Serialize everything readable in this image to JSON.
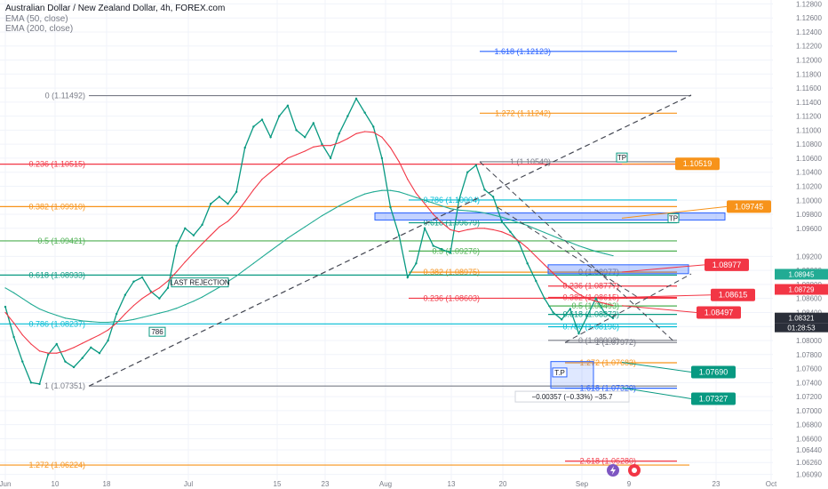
{
  "header": {
    "title": "Australian Dollar / New Zealand Dollar, 4h, FOREX.com",
    "indicator_1": "EMA (50, close)",
    "indicator_2": "EMA (200, close)"
  },
  "chart_data": {
    "type": "line",
    "title": "Australian Dollar / New Zealand Dollar, 4h, FOREX.com",
    "ylim": [
      1.0606,
      1.1278
    ],
    "x_ticks": [
      "Jun",
      "10",
      "18",
      "Jul",
      "15",
      "23",
      "Aug",
      "13",
      "20",
      "Sep",
      "9",
      "23",
      "Oct"
    ],
    "y_ticks": [
      "1.12800",
      "1.12600",
      "1.12400",
      "1.12200",
      "1.12000",
      "1.11800",
      "1.11600",
      "1.11400",
      "1.11200",
      "1.11000",
      "1.10800",
      "1.10600",
      "1.10400",
      "1.10200",
      "1.10000",
      "1.09800",
      "1.09600",
      "1.09200",
      "1.09000",
      "1.08800",
      "1.08600",
      "1.08400",
      "1.08200",
      "1.08000",
      "1.07800",
      "1.07600",
      "1.07400",
      "1.07200",
      "1.07000",
      "1.06800",
      "1.06600",
      "1.06440",
      "1.06260",
      "1.06090"
    ],
    "series": [
      {
        "name": "Australian Dollar / New Zealand Dollar",
        "color": "#089981",
        "values": [
          1.0848,
          1.0805,
          1.077,
          1.074,
          1.0738,
          1.078,
          1.0795,
          1.077,
          1.0762,
          1.0775,
          1.079,
          1.0782,
          1.08,
          1.0838,
          1.0865,
          1.0884,
          1.089,
          1.087,
          1.086,
          1.0875,
          1.0935,
          1.096,
          1.095,
          1.0965,
          1.0995,
          1.1005,
          1.0995,
          1.1012,
          1.1075,
          1.1105,
          1.1115,
          1.109,
          1.112,
          1.1135,
          1.11,
          1.109,
          1.111,
          1.108,
          1.106,
          1.1095,
          1.112,
          1.1145,
          1.1125,
          1.1105,
          1.106,
          1.099,
          1.095,
          1.089,
          1.091,
          1.096,
          1.0935,
          1.093,
          1.0925,
          1.1,
          1.104,
          1.105,
          1.1015,
          1.1005,
          1.097,
          1.0955,
          1.094,
          1.091,
          1.0885,
          1.086,
          1.084,
          1.083,
          1.0845,
          1.081,
          1.0835,
          1.086,
          1.084,
          1.0832
        ]
      },
      {
        "name": "EMA (50, close)",
        "color": "#f23645",
        "values": [
          1.084,
          1.0825,
          1.0808,
          1.0795,
          1.0785,
          1.0782,
          1.0782,
          1.0785,
          1.079,
          1.0796,
          1.0802,
          1.0808,
          1.0815,
          1.0825,
          1.0838,
          1.085,
          1.086,
          1.0868,
          1.0875,
          1.0885,
          1.0898,
          1.0912,
          1.0925,
          1.0938,
          1.095,
          1.0962,
          1.097,
          1.0982,
          1.0998,
          1.1015,
          1.103,
          1.104,
          1.105,
          1.106,
          1.1065,
          1.107,
          1.1076,
          1.1078,
          1.1078,
          1.1082,
          1.1088,
          1.1095,
          1.1098,
          1.1097,
          1.109,
          1.1075,
          1.1055,
          1.103,
          1.101,
          1.0995,
          1.098,
          1.0968,
          1.0958,
          1.0955,
          1.0958,
          1.096,
          1.096,
          1.0958,
          1.0955,
          1.095,
          1.0942,
          1.0932,
          1.092,
          1.0908,
          1.0896,
          1.0884,
          1.0875,
          1.0866,
          1.086,
          1.0856,
          1.0853,
          1.085
        ]
      },
      {
        "name": "EMA (200, close)",
        "color": "#22ab94",
        "values": [
          1.0875,
          1.0868,
          1.086,
          1.0852,
          1.0845,
          1.084,
          1.0836,
          1.0832,
          1.083,
          1.0828,
          1.0827,
          1.0826,
          1.0826,
          1.0827,
          1.0828,
          1.083,
          1.0833,
          1.0836,
          1.0839,
          1.0842,
          1.0846,
          1.0851,
          1.0856,
          1.0862,
          1.0869,
          1.0876,
          1.0884,
          1.0892,
          1.0901,
          1.091,
          1.0919,
          1.0928,
          1.0937,
          1.0946,
          1.0954,
          1.0962,
          1.097,
          1.0978,
          1.0985,
          1.0992,
          1.0998,
          1.1004,
          1.1009,
          1.1012,
          1.1014,
          1.1014,
          1.1012,
          1.1008,
          1.1004,
          1.1,
          1.0996,
          1.0992,
          1.0988,
          1.0986,
          1.0985,
          1.0984,
          1.0982,
          1.0979,
          1.0976,
          1.0972,
          1.0968,
          1.0964,
          1.0959,
          1.0954,
          1.0949,
          1.0944,
          1.094,
          1.0935,
          1.0931,
          1.0927,
          1.0924,
          1.0921
        ]
      }
    ],
    "fib_levels": [
      {
        "label": "1.618 (1.12123)",
        "value": 1.12123,
        "color": "#2962ff",
        "side": "right"
      },
      {
        "label": "0 (1.11492)",
        "value": 1.11492,
        "color": "#787b86",
        "side": "left"
      },
      {
        "label": "1.272 (1.11242)",
        "value": 1.11242,
        "color": "#f7931a",
        "side": "right"
      },
      {
        "label": "1 (1.10549)",
        "value": 1.10549,
        "color": "#787b86",
        "side": "right"
      },
      {
        "label": "0.236 (1.10515)",
        "value": 1.10515,
        "color": "#f23645",
        "side": "left"
      },
      {
        "label": "0.786 (1.10004)",
        "value": 1.10004,
        "color": "#00bcd4",
        "side": "right"
      },
      {
        "label": "0.382 (1.09910)",
        "value": 1.0991,
        "color": "#f7931a",
        "side": "left"
      },
      {
        "label": "0.618 (1.09679)",
        "value": 1.09679,
        "color": "#089981",
        "side": "right"
      },
      {
        "label": "0.5 (1.09421)",
        "value": 1.09421,
        "color": "#4caf50",
        "side": "left"
      },
      {
        "label": "0.5 (1.09276)",
        "value": 1.09276,
        "color": "#4caf50",
        "side": "right"
      },
      {
        "label": "0 (1.08977)",
        "value": 1.08977,
        "color": "#787b86",
        "side": "right"
      },
      {
        "label": "0.382 (1.08975)",
        "value": 1.08975,
        "color": "#f7931a",
        "side": "right"
      },
      {
        "label": "0.618 (1.08933)",
        "value": 1.08933,
        "color": "#089981",
        "side": "left"
      },
      {
        "label": "0.236 (1.08777)",
        "value": 1.08777,
        "color": "#f23645",
        "side": "right"
      },
      {
        "label": "0.382 (1.08615)",
        "value": 1.08615,
        "color": "#f23645",
        "side": "right"
      },
      {
        "label": "0.236 (1.08603)",
        "value": 1.08603,
        "color": "#f23645",
        "side": "right"
      },
      {
        "label": "0.5 (1.08493)",
        "value": 1.08493,
        "color": "#4caf50",
        "side": "right"
      },
      {
        "label": "0.618 (1.08372)",
        "value": 1.08372,
        "color": "#089981",
        "side": "right"
      },
      {
        "label": "0.786 (1.08237)",
        "value": 1.08237,
        "color": "#00bcd4",
        "side": "left"
      },
      {
        "label": "0.786 (1.08196)",
        "value": 1.08196,
        "color": "#00bcd4",
        "side": "right"
      },
      {
        "label": "0 (1.08002)",
        "value": 1.08002,
        "color": "#787b86",
        "side": "right"
      },
      {
        "label": "1 (1.07972)",
        "value": 1.07972,
        "color": "#787b86",
        "side": "right"
      },
      {
        "label": "1.272 (1.07683)",
        "value": 1.07683,
        "color": "#f7931a",
        "side": "right"
      },
      {
        "label": "1 (1.07351)",
        "value": 1.07351,
        "color": "#787b86",
        "side": "left"
      },
      {
        "label": "1.618 (1.07320)",
        "value": 1.0732,
        "color": "#2962ff",
        "side": "right"
      },
      {
        "label": "2.618 (1.06280)",
        "value": 1.0628,
        "color": "#f23645",
        "side": "right"
      },
      {
        "label": "1.272 (1.06224)",
        "value": 1.06224,
        "color": "#f7931a",
        "side": "left"
      }
    ],
    "price_tags": [
      {
        "label": "1.10519",
        "value": 1.10519,
        "color": "#f7931a"
      },
      {
        "label": "1.09745",
        "value": 1.09745,
        "color": "#f7931a"
      },
      {
        "label": "1.08977",
        "value": 1.08977,
        "color": "#f23645"
      },
      {
        "label": "1.08615",
        "value": 1.08615,
        "color": "#f23645"
      },
      {
        "label": "1.08497",
        "value": 1.08497,
        "color": "#f23645"
      },
      {
        "label": "1.07690",
        "value": 1.0769,
        "color": "#089981"
      },
      {
        "label": "1.07327",
        "value": 1.07327,
        "color": "#089981"
      }
    ],
    "axis_tags": [
      {
        "label": "1.08945",
        "value": 1.08945,
        "color": "#22ab94"
      },
      {
        "label": "1.08729",
        "value": 1.08729,
        "color": "#f23645"
      },
      {
        "label": "1.08321",
        "value": 1.08321,
        "color": "#2a2e39"
      }
    ],
    "countdown": "01:28:53",
    "annotations": {
      "last_rejection": "LAST REJECTION",
      "marker_786": "786",
      "tp_1": "TP",
      "tp_2": "TP",
      "tp_3": "T.P",
      "measure": "−0.00357 (−0.33%) −35.7"
    }
  }
}
